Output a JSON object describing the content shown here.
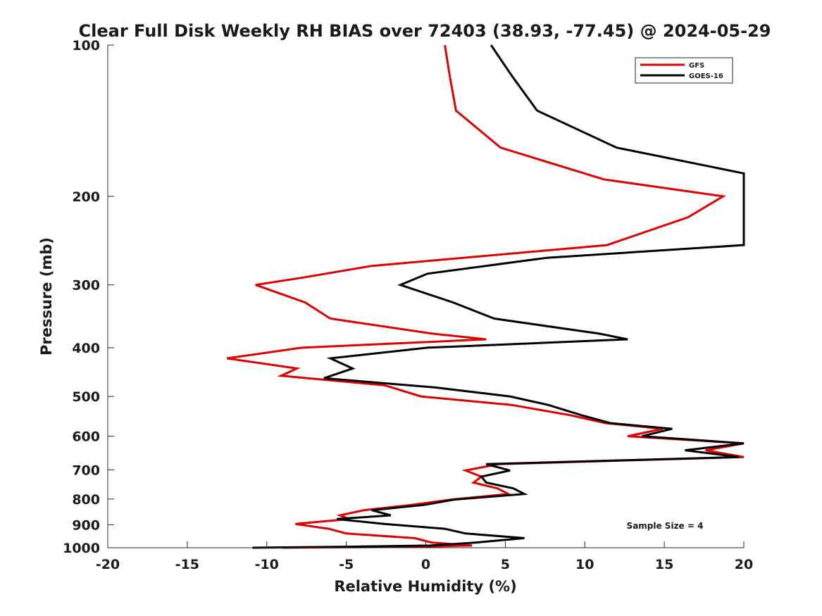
{
  "chart_data": {
    "type": "line",
    "title": "Clear Full Disk Weekly RH BIAS over 72403 (38.93, -77.45) @ 2024-05-29",
    "xlabel": "Relative Humidity (%)",
    "ylabel": "Pressure (mb)",
    "xlim": [
      -20,
      20
    ],
    "ylim": [
      100,
      1000
    ],
    "y_scale": "log",
    "y_reversed": true,
    "grid": false,
    "legend_position": "top-right",
    "x_ticks": [
      -20,
      -15,
      -10,
      -5,
      0,
      5,
      10,
      15,
      20
    ],
    "x_tick_labels": [
      "-20",
      "-15",
      "-10",
      "-5",
      "0",
      "5",
      "10",
      "15",
      "20"
    ],
    "y_ticks": [
      100,
      200,
      300,
      400,
      500,
      600,
      700,
      800,
      900,
      1000
    ],
    "y_tick_labels": [
      "100",
      "200",
      "300",
      "400",
      "500",
      "600",
      "700",
      "800",
      "900",
      "1000"
    ],
    "annotation": "Sample Size = 4",
    "series": [
      {
        "name": "GFS",
        "color": "#e00000",
        "points": [
          [
            1.2,
            100
          ],
          [
            1.5,
            115
          ],
          [
            1.9,
            135
          ],
          [
            4.7,
            160
          ],
          [
            11.2,
            185
          ],
          [
            18.7,
            200
          ],
          [
            16.5,
            220
          ],
          [
            11.4,
            250
          ],
          [
            -3.4,
            275
          ],
          [
            -7.7,
            290
          ],
          [
            -10.7,
            300
          ],
          [
            -7.6,
            325
          ],
          [
            -6.0,
            350
          ],
          [
            0.4,
            375
          ],
          [
            3.8,
            385
          ],
          [
            -7.8,
            400
          ],
          [
            -12.5,
            420
          ],
          [
            -8.1,
            440
          ],
          [
            -9.1,
            455
          ],
          [
            -2.6,
            475
          ],
          [
            -0.3,
            500
          ],
          [
            5.4,
            520
          ],
          [
            9.1,
            545
          ],
          [
            11.3,
            565
          ],
          [
            14.9,
            580
          ],
          [
            12.7,
            600
          ],
          [
            20.0,
            620
          ],
          [
            17.6,
            640
          ],
          [
            20.0,
            660
          ],
          [
            4.6,
            682
          ],
          [
            2.5,
            702
          ],
          [
            3.5,
            722
          ],
          [
            3.0,
            742
          ],
          [
            4.5,
            762
          ],
          [
            5.2,
            782
          ],
          [
            1.6,
            802
          ],
          [
            -0.9,
            822
          ],
          [
            -3.9,
            842
          ],
          [
            -5.4,
            862
          ],
          [
            -4.8,
            877
          ],
          [
            -8.2,
            897
          ],
          [
            -6.1,
            917
          ],
          [
            -5.0,
            937
          ],
          [
            -0.7,
            957
          ],
          [
            0.4,
            977
          ],
          [
            2.9,
            990
          ],
          [
            -1.0,
            996
          ],
          [
            -9.0,
            1000
          ]
        ]
      },
      {
        "name": "GOES-16",
        "color": "#000000",
        "points": [
          [
            4.1,
            100
          ],
          [
            5.4,
            115
          ],
          [
            7.0,
            135
          ],
          [
            12.0,
            160
          ],
          [
            20.0,
            180
          ],
          [
            20.0,
            250
          ],
          [
            7.6,
            265
          ],
          [
            0.1,
            285
          ],
          [
            -1.6,
            300
          ],
          [
            1.7,
            325
          ],
          [
            4.3,
            350
          ],
          [
            10.9,
            375
          ],
          [
            12.7,
            385
          ],
          [
            0.1,
            400
          ],
          [
            -6.0,
            420
          ],
          [
            -4.6,
            440
          ],
          [
            -6.4,
            460
          ],
          [
            0.6,
            480
          ],
          [
            5.3,
            500
          ],
          [
            7.7,
            520
          ],
          [
            9.8,
            545
          ],
          [
            11.6,
            565
          ],
          [
            15.5,
            580
          ],
          [
            13.6,
            600
          ],
          [
            20.0,
            620
          ],
          [
            16.3,
            640
          ],
          [
            19.7,
            660
          ],
          [
            3.8,
            682
          ],
          [
            5.3,
            702
          ],
          [
            3.5,
            722
          ],
          [
            3.8,
            742
          ],
          [
            5.5,
            762
          ],
          [
            6.2,
            782
          ],
          [
            1.8,
            802
          ],
          [
            -0.1,
            822
          ],
          [
            -3.4,
            842
          ],
          [
            -2.2,
            862
          ],
          [
            -5.6,
            877
          ],
          [
            -2.6,
            897
          ],
          [
            1.2,
            917
          ],
          [
            2.5,
            937
          ],
          [
            6.2,
            957
          ],
          [
            3.1,
            977
          ],
          [
            0.3,
            990
          ],
          [
            -5.5,
            996
          ],
          [
            -10.9,
            1000
          ]
        ]
      }
    ]
  }
}
